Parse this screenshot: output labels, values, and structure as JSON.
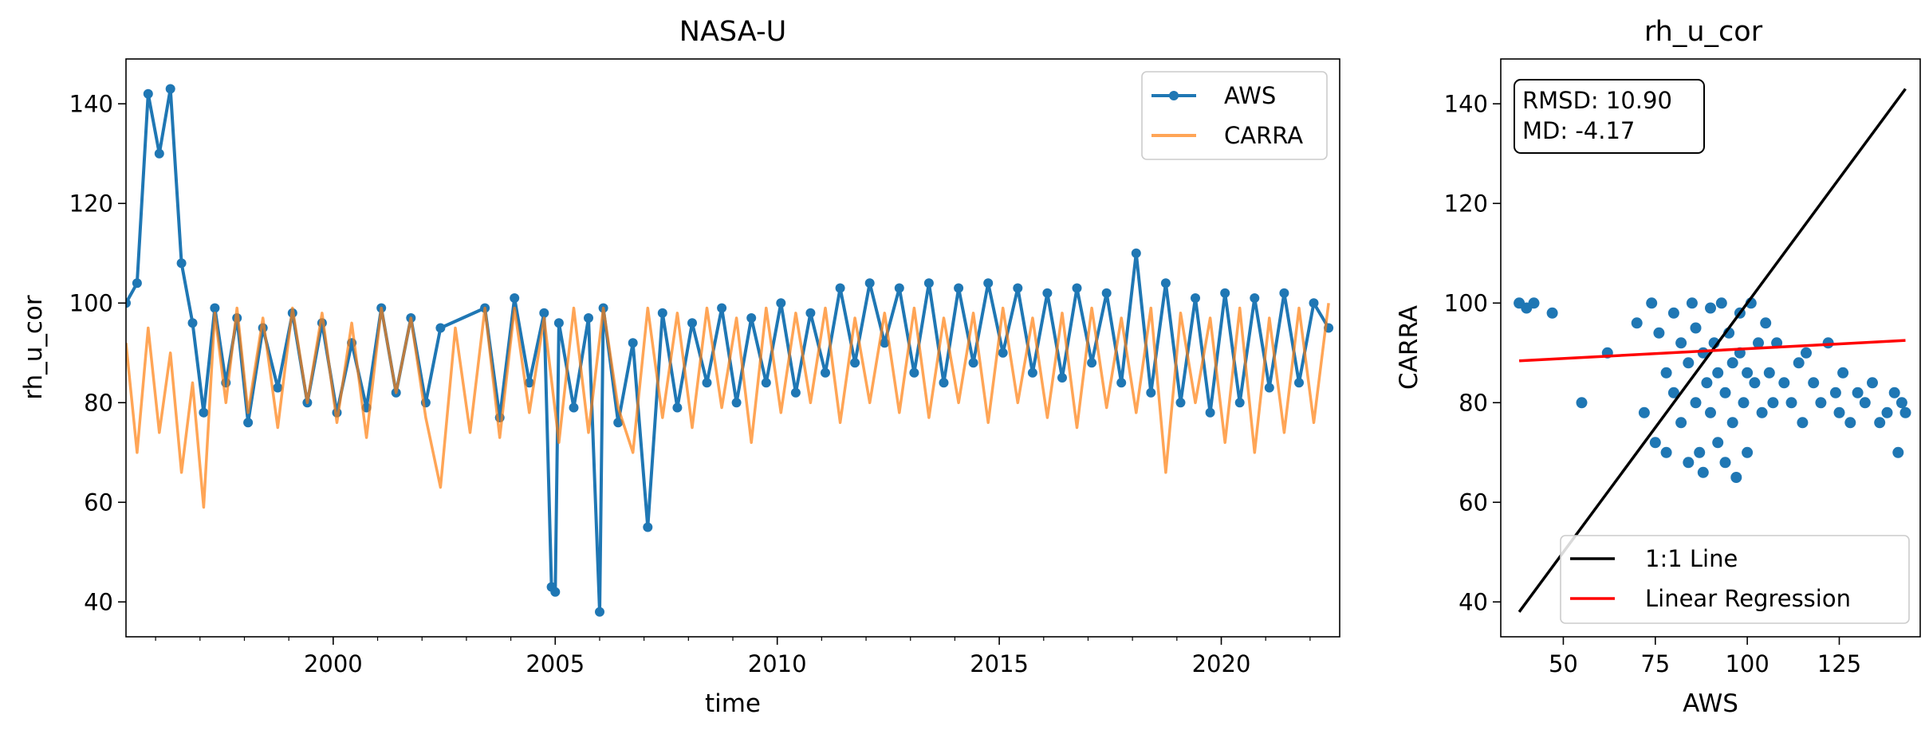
{
  "chart_data": [
    {
      "type": "line",
      "title": "NASA-U",
      "xlabel": "time",
      "ylabel": "rh_u_cor",
      "xlim": [
        "1995-05-01",
        "2022-09-01"
      ],
      "ylim": [
        33,
        149
      ],
      "x_ticks": [
        "2000",
        "2005",
        "2010",
        "2015",
        "2020"
      ],
      "y_ticks": [
        "40",
        "60",
        "80",
        "100",
        "120",
        "140"
      ],
      "legend": "top-right",
      "series": [
        {
          "name": "AWS",
          "color": "#1f77b4",
          "marker": "circle",
          "x": [
            "1995-05-01",
            "1995-08-01",
            "1995-11-01",
            "1996-02-01",
            "1996-05-01",
            "1996-08-01",
            "1996-11-01",
            "1997-02-01",
            "1997-05-01",
            "1997-08-01",
            "1997-11-01",
            "1998-02-01",
            "1998-06-01",
            "1998-10-01",
            "1999-02-01",
            "1999-06-01",
            "1999-10-01",
            "2000-02-01",
            "2000-06-01",
            "2000-10-01",
            "2001-02-01",
            "2001-06-01",
            "2001-10-01",
            "2002-02-01",
            "2002-06-01",
            "2003-06-01",
            "2003-10-01",
            "2004-02-01",
            "2004-06-01",
            "2004-10-01",
            "2004-12-01",
            "2005-01-01",
            "2005-02-01",
            "2005-06-01",
            "2005-10-01",
            "2006-01-01",
            "2006-02-01",
            "2006-06-01",
            "2006-10-01",
            "2007-02-01",
            "2007-06-01",
            "2007-10-01",
            "2008-02-01",
            "2008-06-01",
            "2008-10-01",
            "2009-02-01",
            "2009-06-01",
            "2009-10-01",
            "2010-02-01",
            "2010-06-01",
            "2010-10-01",
            "2011-02-01",
            "2011-06-01",
            "2011-10-01",
            "2012-02-01",
            "2012-06-01",
            "2012-10-01",
            "2013-02-01",
            "2013-06-01",
            "2013-10-01",
            "2014-02-01",
            "2014-06-01",
            "2014-10-01",
            "2015-02-01",
            "2015-06-01",
            "2015-10-01",
            "2016-02-01",
            "2016-06-01",
            "2016-10-01",
            "2017-02-01",
            "2017-06-01",
            "2017-10-01",
            "2018-02-01",
            "2018-06-01",
            "2018-10-01",
            "2019-02-01",
            "2019-06-01",
            "2019-10-01",
            "2020-02-01",
            "2020-06-01",
            "2020-10-01",
            "2021-02-01",
            "2021-06-01",
            "2021-10-01",
            "2022-02-01",
            "2022-06-01"
          ],
          "y": [
            100,
            104,
            142,
            130,
            143,
            108,
            96,
            78,
            99,
            84,
            97,
            76,
            95,
            83,
            98,
            80,
            96,
            78,
            92,
            79,
            99,
            82,
            97,
            80,
            95,
            99,
            77,
            101,
            84,
            98,
            43,
            42,
            96,
            79,
            97,
            38,
            99,
            76,
            92,
            55,
            98,
            79,
            96,
            84,
            99,
            80,
            97,
            84,
            100,
            82,
            98,
            86,
            103,
            88,
            104,
            92,
            103,
            86,
            104,
            84,
            103,
            88,
            104,
            90,
            103,
            86,
            102,
            85,
            103,
            88,
            102,
            84,
            110,
            82,
            104,
            80,
            101,
            78,
            102,
            80,
            101,
            83,
            102,
            84,
            100,
            95
          ]
        },
        {
          "name": "CARRA",
          "color": "#ff7f0e",
          "opacity": 0.7,
          "x": [
            "1995-05-01",
            "1995-08-01",
            "1995-11-01",
            "1996-02-01",
            "1996-05-01",
            "1996-08-01",
            "1996-11-01",
            "1997-02-01",
            "1997-05-01",
            "1997-08-01",
            "1997-11-01",
            "1998-02-01",
            "1998-06-01",
            "1998-10-01",
            "1999-02-01",
            "1999-06-01",
            "1999-10-01",
            "2000-02-01",
            "2000-06-01",
            "2000-10-01",
            "2001-02-01",
            "2001-06-01",
            "2001-10-01",
            "2002-02-01",
            "2002-06-01",
            "2002-10-01",
            "2003-02-01",
            "2003-06-01",
            "2003-10-01",
            "2004-02-01",
            "2004-06-01",
            "2004-10-01",
            "2005-02-01",
            "2005-06-01",
            "2005-10-01",
            "2006-02-01",
            "2006-06-01",
            "2006-10-01",
            "2007-02-01",
            "2007-06-01",
            "2007-10-01",
            "2008-02-01",
            "2008-06-01",
            "2008-10-01",
            "2009-02-01",
            "2009-06-01",
            "2009-10-01",
            "2010-02-01",
            "2010-06-01",
            "2010-10-01",
            "2011-02-01",
            "2011-06-01",
            "2011-10-01",
            "2012-02-01",
            "2012-06-01",
            "2012-10-01",
            "2013-02-01",
            "2013-06-01",
            "2013-10-01",
            "2014-02-01",
            "2014-06-01",
            "2014-10-01",
            "2015-02-01",
            "2015-06-01",
            "2015-10-01",
            "2016-02-01",
            "2016-06-01",
            "2016-10-01",
            "2017-02-01",
            "2017-06-01",
            "2017-10-01",
            "2018-02-01",
            "2018-06-01",
            "2018-10-01",
            "2019-02-01",
            "2019-06-01",
            "2019-10-01",
            "2020-02-01",
            "2020-06-01",
            "2020-10-01",
            "2021-02-01",
            "2021-06-01",
            "2021-10-01",
            "2022-02-01",
            "2022-06-01"
          ],
          "y": [
            92,
            70,
            95,
            74,
            90,
            66,
            84,
            59,
            98,
            80,
            99,
            78,
            97,
            75,
            99,
            80,
            98,
            76,
            96,
            73,
            99,
            82,
            97,
            77,
            63,
            95,
            74,
            99,
            73,
            99,
            78,
            97,
            72,
            99,
            74,
            99,
            79,
            70,
            99,
            77,
            98,
            75,
            99,
            79,
            97,
            72,
            99,
            78,
            98,
            80,
            99,
            76,
            97,
            80,
            98,
            78,
            99,
            77,
            97,
            80,
            98,
            76,
            99,
            80,
            97,
            77,
            98,
            75,
            99,
            79,
            97,
            78,
            99,
            66,
            98,
            80,
            97,
            72,
            99,
            70,
            97,
            74,
            99,
            76,
            100
          ]
        }
      ]
    },
    {
      "type": "scatter",
      "title": "rh_u_cor",
      "xlabel": "AWS",
      "ylabel": "CARRA",
      "xlim": [
        33,
        147
      ],
      "ylim": [
        33,
        149
      ],
      "x_ticks": [
        "50",
        "75",
        "100",
        "125"
      ],
      "y_ticks": [
        "40",
        "60",
        "80",
        "100",
        "120",
        "140"
      ],
      "legend": "lower-right",
      "stats": {
        "rmsd": "RMSD: 10.90",
        "md": "MD: -4.17"
      },
      "lines": [
        {
          "name": "1:1 Line",
          "color": "#000000",
          "x": [
            38,
            143
          ],
          "y": [
            38,
            143
          ]
        },
        {
          "name": "Linear Regression",
          "color": "#ff0000",
          "x": [
            38,
            143
          ],
          "y": [
            88.4,
            92.5
          ]
        }
      ],
      "points": {
        "color": "#1f77b4",
        "x": [
          38,
          40,
          42,
          47,
          55,
          62,
          70,
          72,
          74,
          75,
          76,
          78,
          78,
          80,
          80,
          82,
          82,
          84,
          84,
          85,
          86,
          86,
          87,
          88,
          88,
          89,
          90,
          90,
          91,
          92,
          92,
          93,
          94,
          94,
          95,
          96,
          96,
          97,
          98,
          98,
          99,
          100,
          100,
          101,
          102,
          103,
          104,
          105,
          106,
          107,
          108,
          110,
          112,
          114,
          115,
          116,
          118,
          120,
          122,
          124,
          125,
          126,
          128,
          130,
          132,
          134,
          136,
          138,
          140,
          141,
          142,
          143
        ],
        "y": [
          100,
          99,
          100,
          98,
          80,
          90,
          96,
          78,
          100,
          72,
          94,
          86,
          70,
          98,
          82,
          76,
          92,
          68,
          88,
          100,
          80,
          95,
          70,
          90,
          66,
          84,
          99,
          78,
          92,
          72,
          86,
          100,
          68,
          82,
          94,
          76,
          88,
          65,
          90,
          98,
          80,
          86,
          70,
          100,
          84,
          92,
          78,
          96,
          86,
          80,
          92,
          84,
          80,
          88,
          76,
          90,
          84,
          80,
          92,
          82,
          78,
          86,
          76,
          82,
          80,
          84,
          76,
          78,
          82,
          70,
          80,
          78
        ]
      }
    }
  ]
}
